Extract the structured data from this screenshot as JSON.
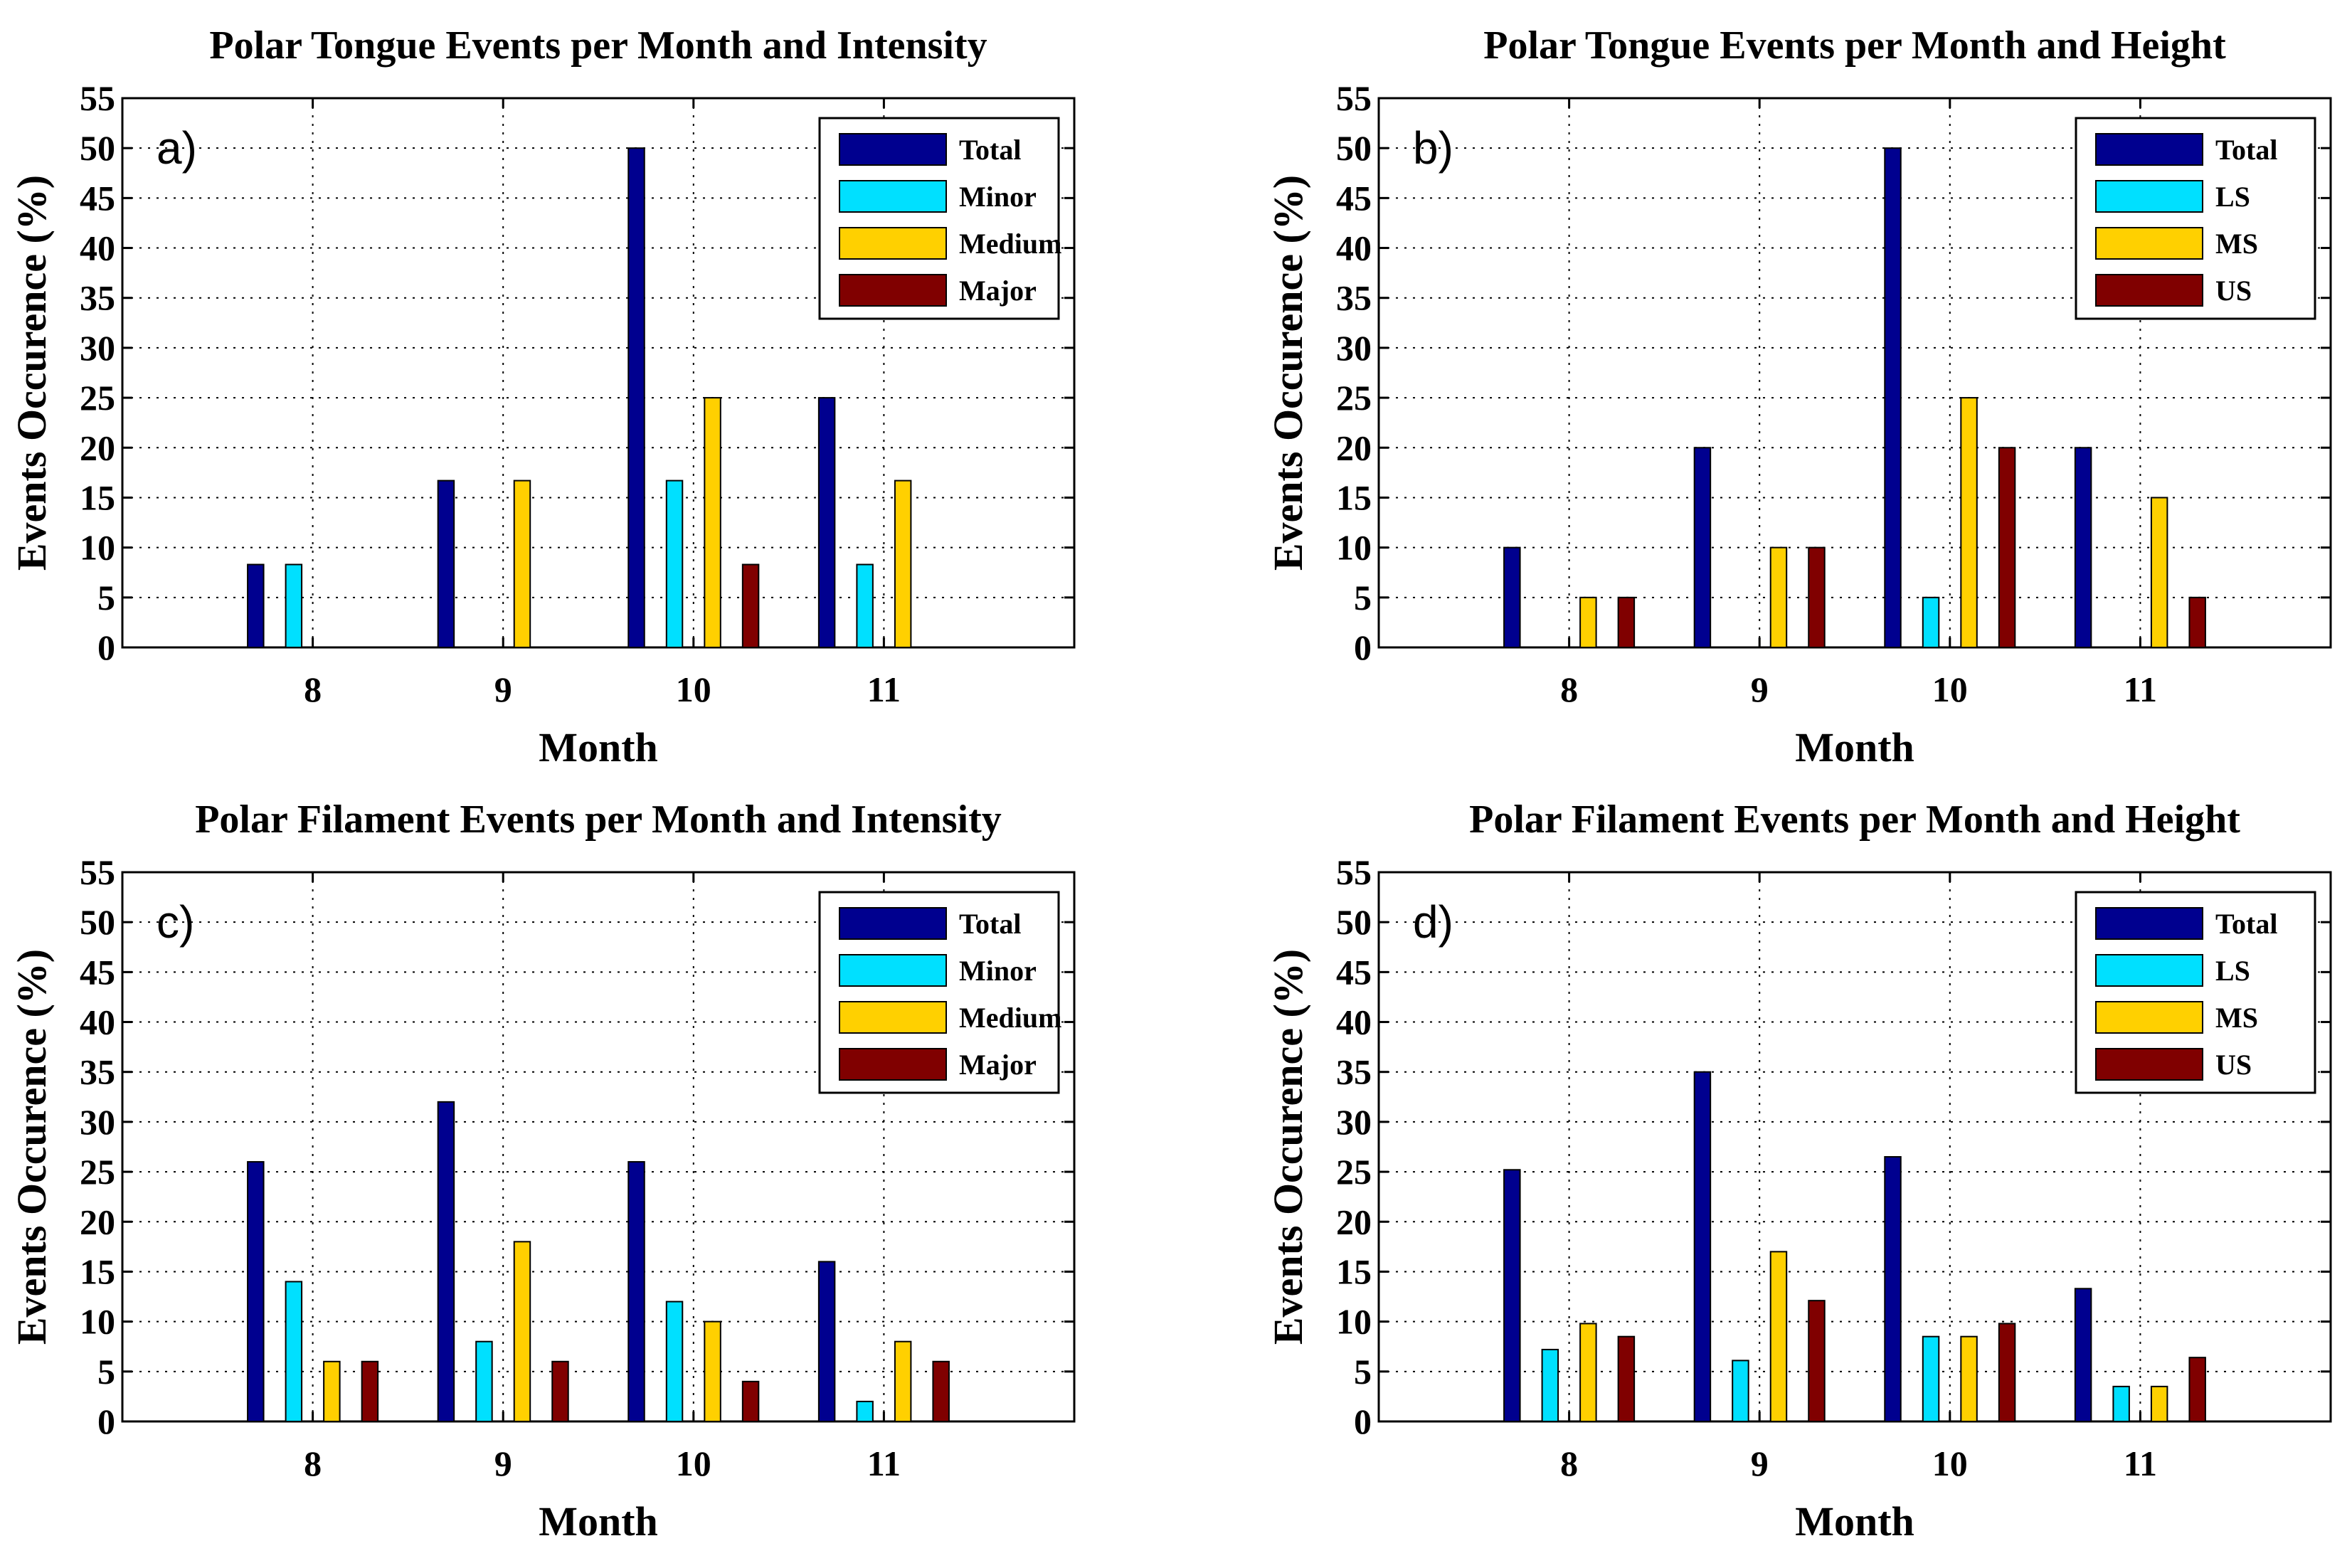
{
  "colors": {
    "total": "#00008f",
    "series2": "#00e0ff",
    "series3": "#ffd000",
    "series4": "#800000",
    "axis": "#000000",
    "grid": "#000000",
    "background": "#ffffff"
  },
  "chart_data": [
    {
      "type": "bar",
      "tag": "a)",
      "title": "Polar Tongue Events per Month and Intensity",
      "xlabel": "Month",
      "ylabel": "Events Occurence (%)",
      "categories": [
        "8",
        "9",
        "10",
        "11"
      ],
      "yticks": [
        "0",
        "5",
        "10",
        "15",
        "20",
        "25",
        "30",
        "35",
        "40",
        "45",
        "50",
        "55"
      ],
      "ylim": [
        0,
        55
      ],
      "grid": true,
      "legend_position": "top-right",
      "series": [
        {
          "name": "Total",
          "values": [
            8.3,
            16.7,
            50,
            25
          ]
        },
        {
          "name": "Minor",
          "values": [
            8.3,
            0,
            16.7,
            8.3
          ]
        },
        {
          "name": "Medium",
          "values": [
            0,
            16.7,
            25,
            16.7
          ]
        },
        {
          "name": "Major",
          "values": [
            0,
            0,
            8.3,
            0
          ]
        }
      ]
    },
    {
      "type": "bar",
      "tag": "b)",
      "title": "Polar Tongue Events per Month and Height",
      "xlabel": "Month",
      "ylabel": "Events Occurence (%)",
      "categories": [
        "8",
        "9",
        "10",
        "11"
      ],
      "yticks": [
        "0",
        "5",
        "10",
        "15",
        "20",
        "25",
        "30",
        "35",
        "40",
        "45",
        "50",
        "55"
      ],
      "ylim": [
        0,
        55
      ],
      "grid": true,
      "legend_position": "top-right",
      "series": [
        {
          "name": "Total",
          "values": [
            10,
            20,
            50,
            20
          ]
        },
        {
          "name": "LS",
          "values": [
            0,
            0,
            5,
            0
          ]
        },
        {
          "name": "MS",
          "values": [
            5,
            10,
            25,
            15
          ]
        },
        {
          "name": "US",
          "values": [
            5,
            10,
            20,
            5
          ]
        }
      ]
    },
    {
      "type": "bar",
      "tag": "c)",
      "title": "Polar Filament Events per Month and Intensity",
      "xlabel": "Month",
      "ylabel": "Events Occurence (%)",
      "categories": [
        "8",
        "9",
        "10",
        "11"
      ],
      "yticks": [
        "0",
        "5",
        "10",
        "15",
        "20",
        "25",
        "30",
        "35",
        "40",
        "45",
        "50",
        "55"
      ],
      "ylim": [
        0,
        55
      ],
      "grid": true,
      "legend_position": "top-right",
      "series": [
        {
          "name": "Total",
          "values": [
            26,
            32,
            26,
            16
          ]
        },
        {
          "name": "Minor",
          "values": [
            14,
            8,
            12,
            2
          ]
        },
        {
          "name": "Medium",
          "values": [
            6,
            18,
            10,
            8
          ]
        },
        {
          "name": "Major",
          "values": [
            6,
            6,
            4,
            6
          ]
        }
      ]
    },
    {
      "type": "bar",
      "tag": "d)",
      "title": "Polar Filament Events per Month and Height",
      "xlabel": "Month",
      "ylabel": "Events Occurence (%)",
      "categories": [
        "8",
        "9",
        "10",
        "11"
      ],
      "yticks": [
        "0",
        "5",
        "10",
        "15",
        "20",
        "25",
        "30",
        "35",
        "40",
        "45",
        "50",
        "55"
      ],
      "ylim": [
        0,
        55
      ],
      "grid": true,
      "legend_position": "top-right",
      "series": [
        {
          "name": "Total",
          "values": [
            25.2,
            35,
            26.5,
            13.3
          ]
        },
        {
          "name": "LS",
          "values": [
            7.2,
            6.1,
            8.5,
            3.5
          ]
        },
        {
          "name": "MS",
          "values": [
            9.8,
            17,
            8.5,
            3.5
          ]
        },
        {
          "name": "US",
          "values": [
            8.5,
            12.1,
            9.8,
            6.4
          ]
        }
      ]
    }
  ]
}
